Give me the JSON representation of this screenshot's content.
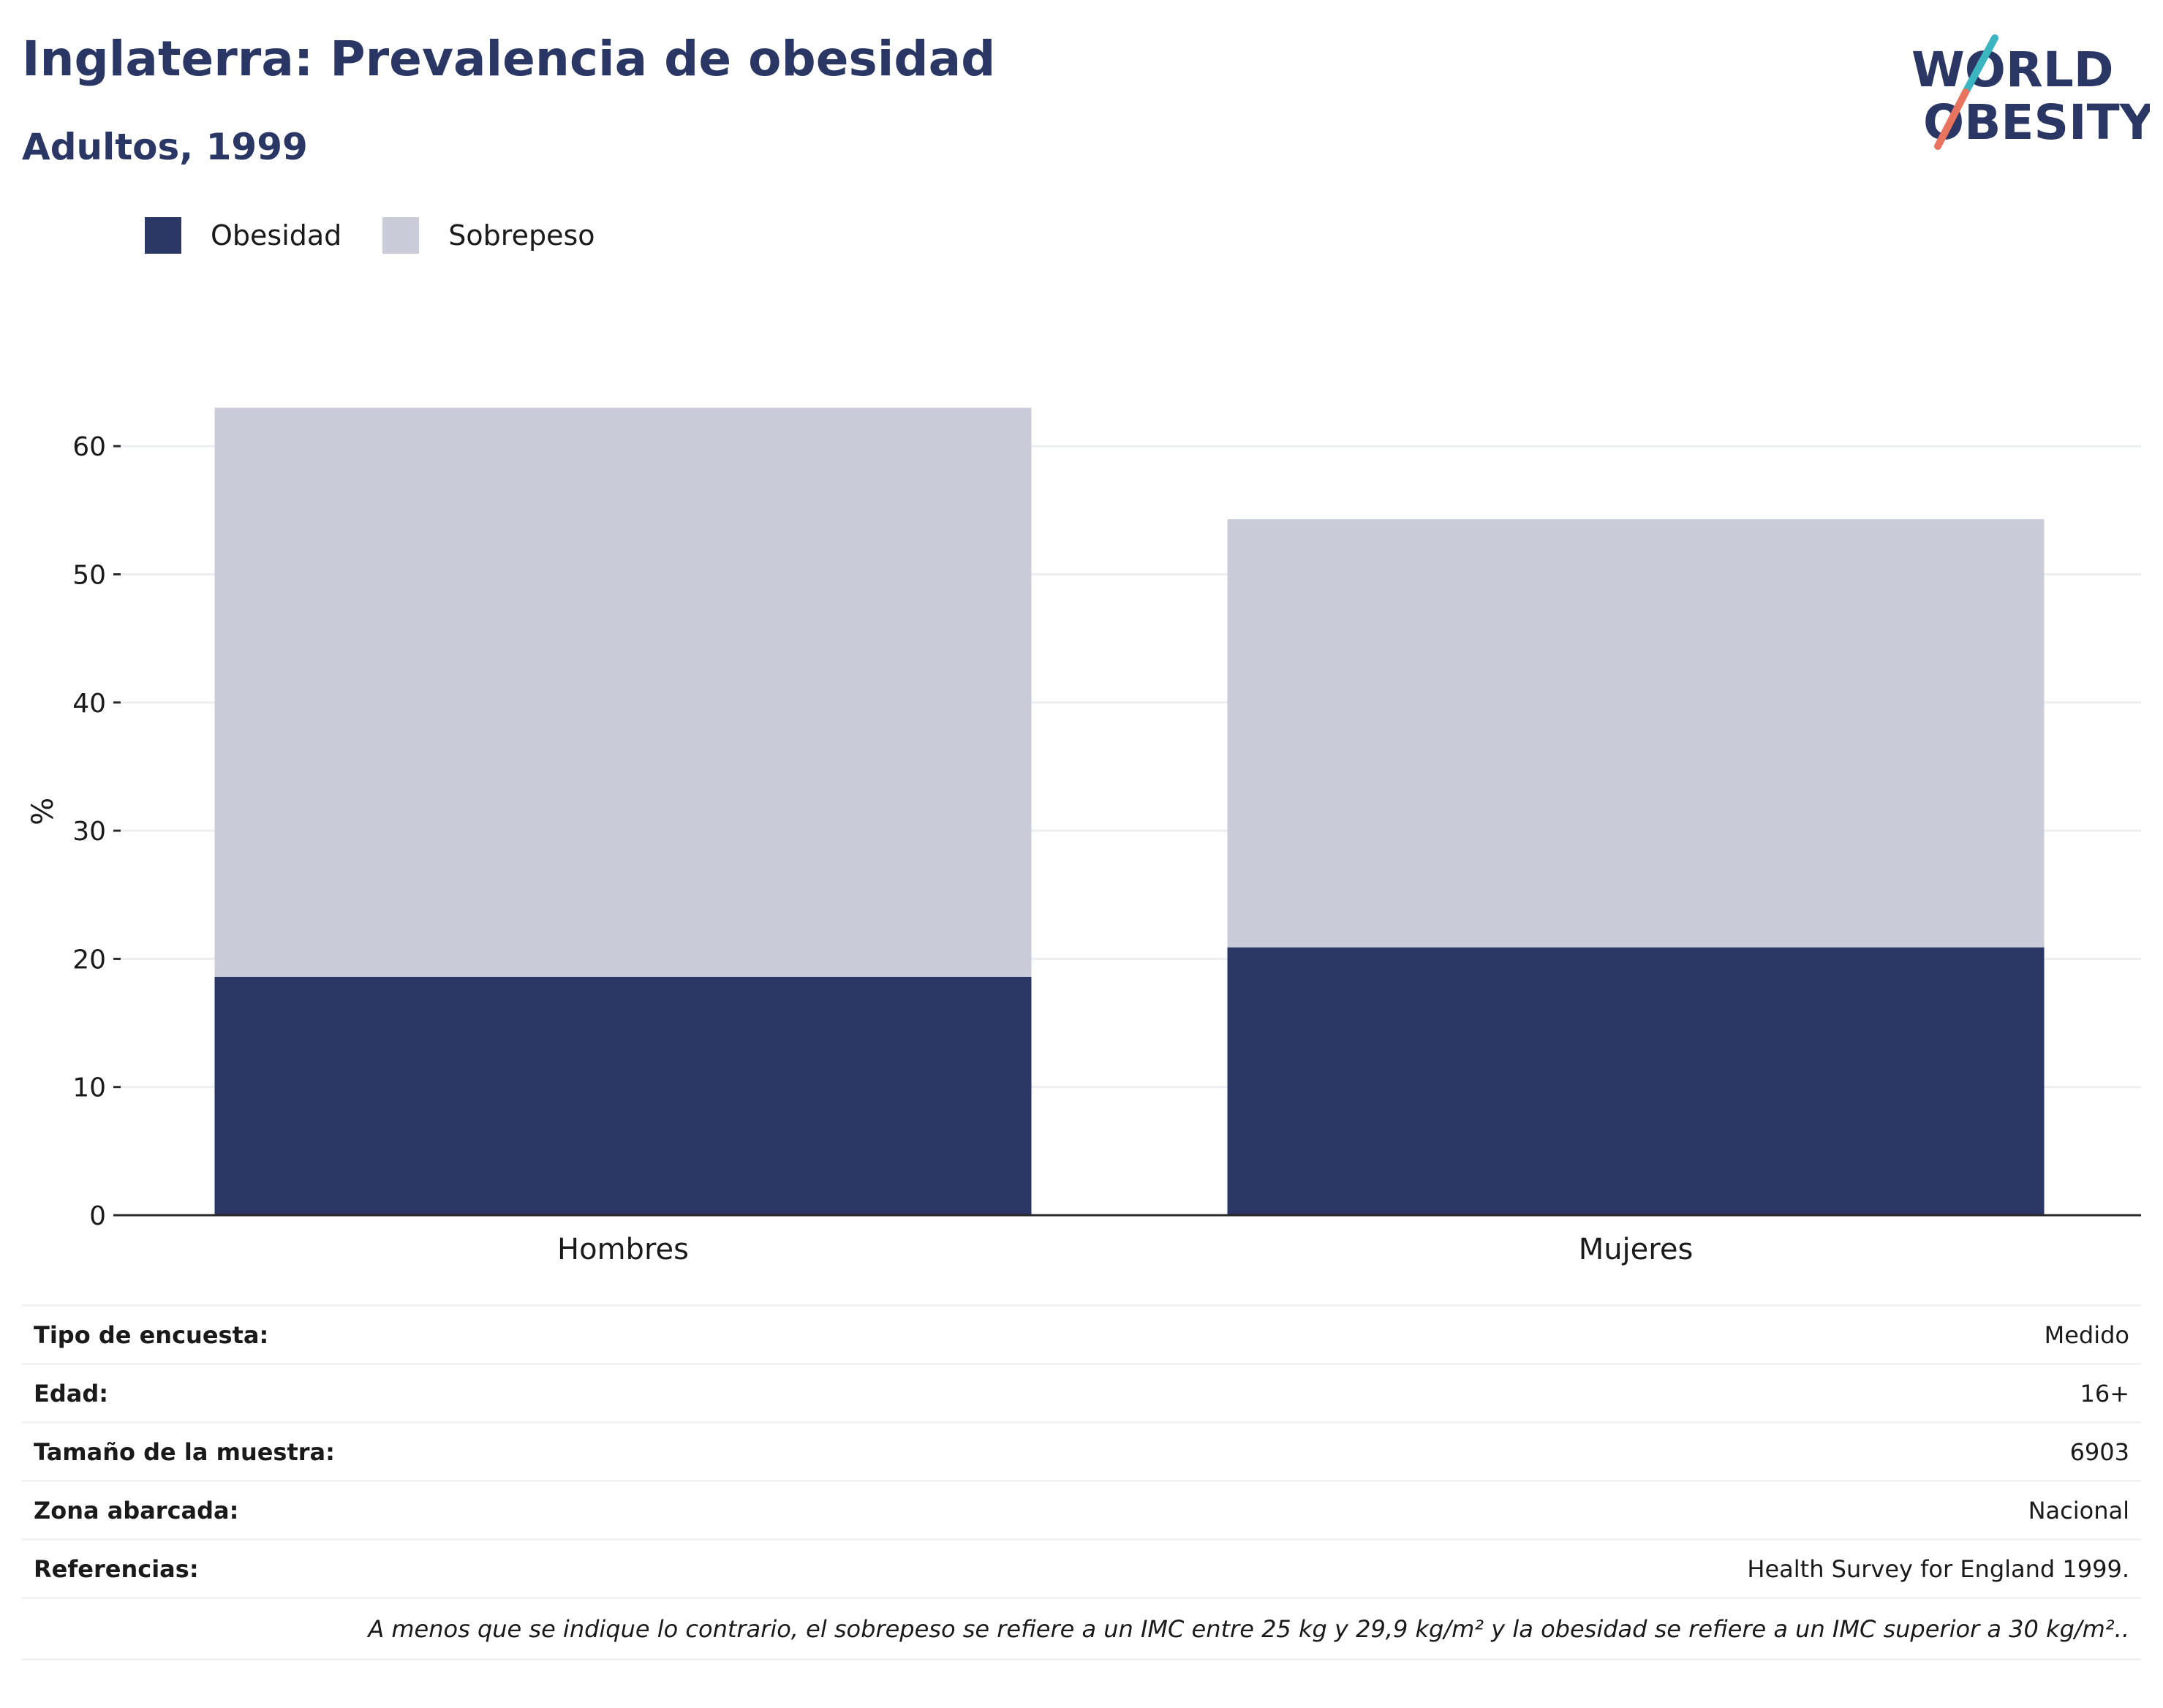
{
  "header": {
    "title": "Inglaterra: Prevalencia de obesidad",
    "subtitle": "Adultos, 1999"
  },
  "logo": {
    "line1": "WORLD",
    "line2": "OBESITY",
    "accent_teal": "#3bb5bf",
    "accent_coral": "#e8735f"
  },
  "colors": {
    "obesidad": "#2a3765",
    "sobrepeso": "#cacdd9",
    "grid": "#eceef2",
    "axis": "#2a2a2a"
  },
  "legend": [
    {
      "label": "Obesidad",
      "color": "#2a3765"
    },
    {
      "label": "Sobrepeso",
      "color": "#cacdd9"
    }
  ],
  "chart_data": {
    "type": "bar",
    "stacked": true,
    "categories": [
      "Hombres",
      "Mujeres"
    ],
    "series": [
      {
        "name": "Obesidad",
        "values": [
          18.6,
          20.9
        ]
      },
      {
        "name": "Sobrepeso",
        "values": [
          44.4,
          33.4
        ]
      }
    ],
    "ylabel": "%",
    "ylim": [
      0,
      63
    ],
    "yticks": [
      0,
      10,
      20,
      30,
      40,
      50,
      60
    ],
    "grid": true,
    "legend_position": "top-left"
  },
  "info_table": {
    "rows": [
      {
        "label": "Tipo de encuesta:",
        "value": "Medido"
      },
      {
        "label": "Edad:",
        "value": "16+"
      },
      {
        "label": "Tamaño de la muestra:",
        "value": "6903"
      },
      {
        "label": "Zona abarcada:",
        "value": "Nacional"
      },
      {
        "label": "Referencias:",
        "value": "Health Survey for England 1999."
      }
    ],
    "note": "A menos que se indique lo contrario, el sobrepeso se refiere a un IMC entre 25 kg y 29,9 kg/m² y la obesidad se refiere a un IMC superior a 30 kg/m².."
  }
}
